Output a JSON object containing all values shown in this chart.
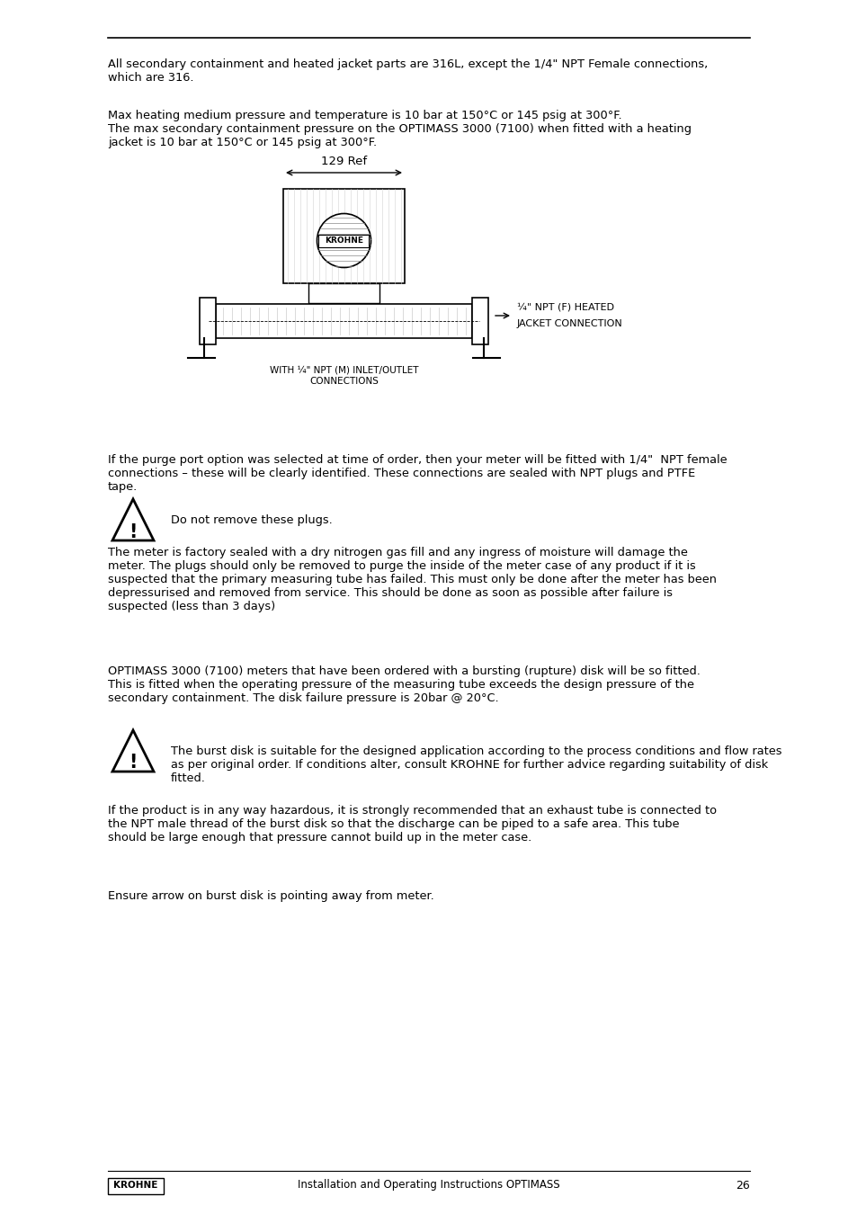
{
  "bg_color": "#ffffff",
  "text_color": "#000000",
  "page_number": "26",
  "footer_left": "KROHNE",
  "footer_center": "Installation and Operating Instructions OPTIMASS",
  "para1": "All secondary containment and heated jacket parts are 316L, except the 1/4\" NPT Female connections,\nwhich are 316.",
  "para2": "Max heating medium pressure and temperature is 10 bar at 150°C or 145 psig at 300°F.\nThe max secondary containment pressure on the OPTIMASS 3000 (7100) when fitted with a heating\njacket is 10 bar at 150°C or 145 psig at 300°F.",
  "diagram_label_top": "129 Ref",
  "diagram_label_bottom_line1": "WITH ¼\" NPT (M) INLET/OUTLET",
  "diagram_label_bottom_line2": "CONNECTIONS",
  "diagram_label_right_line1": "¼\" NPT (F) HEATED",
  "diagram_label_right_line2": "JACKET CONNECTION",
  "para3": "If the purge port option was selected at time of order, then your meter will be fitted with 1/4\"  NPT female\nconnections – these will be clearly identified. These connections are sealed with NPT plugs and PTFE\ntape.",
  "warning1": "Do not remove these plugs.",
  "para4": "The meter is factory sealed with a dry nitrogen gas fill and any ingress of moisture will damage the\nmeter. The plugs should only be removed to purge the inside of the meter case of any product if it is\nsuspected that the primary measuring tube has failed. This must only be done after the meter has been\ndepressurised and removed from service. This should be done as soon as possible after failure is\nsuspected (less than 3 days)",
  "para5": "OPTIMASS 3000 (7100) meters that have been ordered with a bursting (rupture) disk will be so fitted.\nThis is fitted when the operating pressure of the measuring tube exceeds the design pressure of the\nsecondary containment. The disk failure pressure is 20bar @ 20°C.",
  "warning2": "The burst disk is suitable for the designed application according to the process conditions and flow rates\nas per original order. If conditions alter, consult KROHNE for further advice regarding suitability of disk\nfitted.",
  "para6": "If the product is in any way hazardous, it is strongly recommended that an exhaust tube is connected to\nthe NPT male thread of the burst disk so that the discharge can be piped to a safe area. This tube\nshould be large enough that pressure cannot build up in the meter case.",
  "para7": "Ensure arrow on burst disk is pointing away from meter."
}
